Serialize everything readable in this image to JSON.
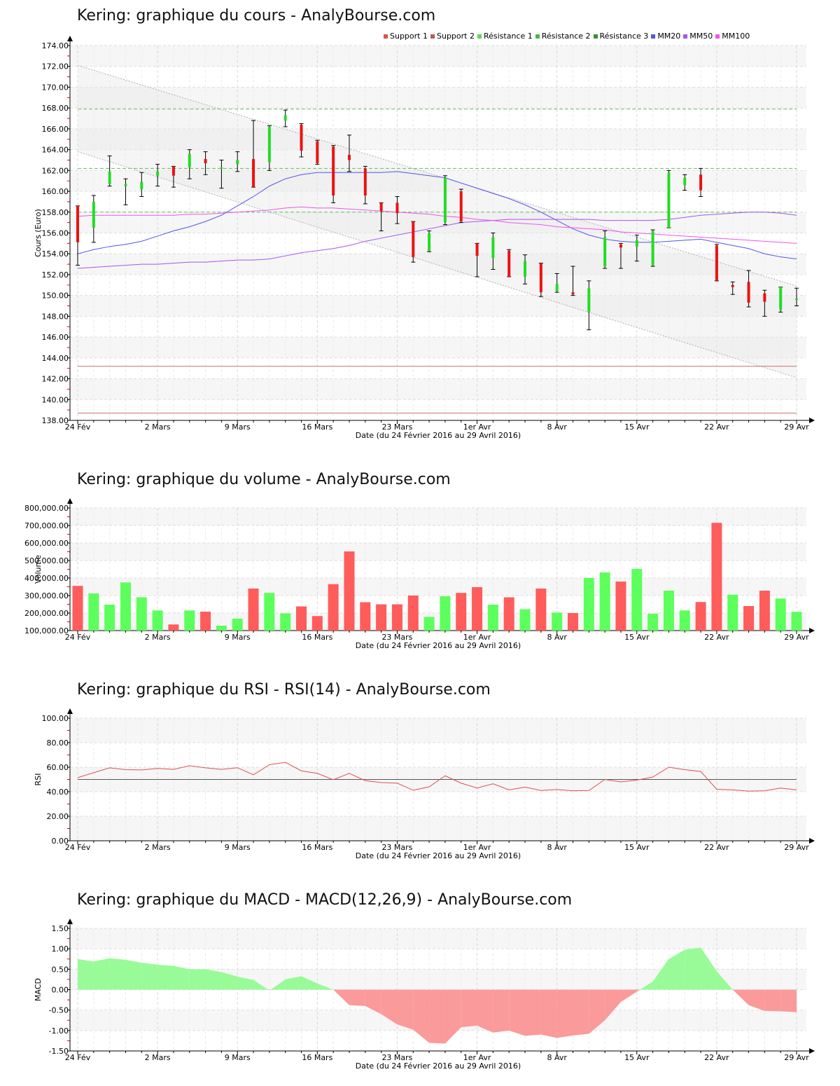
{
  "x_axis": {
    "ticks": [
      "24 Fév",
      "2 Mars",
      "9 Mars",
      "16 Mars",
      "23 Mars",
      "1er Avr",
      "8 Avr",
      "15 Avr",
      "22 Avr",
      "29 Avr"
    ],
    "tick_index": [
      0,
      5,
      10,
      15,
      20,
      25,
      30,
      35,
      40,
      45
    ],
    "label": "Date (du 24 Février 2016 au 29 Avril 2016)"
  },
  "price": {
    "title": "Kering: graphique du cours - AnalyBourse.com",
    "ylabel": "Cours (Euro)",
    "legend": [
      {
        "label": "Support 1",
        "color": "#d9534f"
      },
      {
        "label": "Support 2",
        "color": "#b85c5c"
      },
      {
        "label": "Résistance 1",
        "color": "#5cd65c"
      },
      {
        "label": "Résistance 2",
        "color": "#4cb84c"
      },
      {
        "label": "Résistance 3",
        "color": "#3d8f3d"
      },
      {
        "label": "MM20",
        "color": "#5555ee"
      },
      {
        "label": "MM50",
        "color": "#a855ee"
      },
      {
        "label": "MM100",
        "color": "#ee55ee"
      }
    ]
  },
  "volume": {
    "title": "Kering: graphique du volume - AnalyBourse.com",
    "ylabel": "Volume"
  },
  "rsi": {
    "title": "Kering: graphique du RSI - RSI(14) - AnalyBourse.com",
    "ylabel": "RSI"
  },
  "macd": {
    "title": "Kering: graphique du MACD - MACD(12,26,9) - AnalyBourse.com",
    "ylabel": "MACD"
  },
  "chart_data": [
    {
      "type": "candlestick",
      "title": "Kering: graphique du cours - AnalyBourse.com",
      "xlabel": "Date (du 24 Février 2016 au 29 Avril 2016)",
      "ylabel": "Cours (Euro)",
      "ylim": [
        138,
        174
      ],
      "yticks": [
        138,
        140,
        142,
        144,
        146,
        148,
        150,
        152,
        154,
        156,
        158,
        160,
        162,
        164,
        166,
        168,
        170,
        172,
        174
      ],
      "grid": true,
      "legend_position": "top-right",
      "candles": [
        {
          "o": 158.6,
          "h": 158.6,
          "l": 152.9,
          "c": 155.1
        },
        {
          "o": 156.5,
          "h": 159.6,
          "l": 155.1,
          "c": 159.0
        },
        {
          "o": 160.7,
          "h": 163.4,
          "l": 160.5,
          "c": 161.9
        },
        {
          "o": 160.5,
          "h": 161.2,
          "l": 158.7,
          "c": 160.7
        },
        {
          "o": 160.2,
          "h": 161.8,
          "l": 159.5,
          "c": 160.9
        },
        {
          "o": 161.5,
          "h": 162.6,
          "l": 160.5,
          "c": 161.9
        },
        {
          "o": 162.4,
          "h": 162.4,
          "l": 160.4,
          "c": 161.5
        },
        {
          "o": 162.3,
          "h": 164.0,
          "l": 161.2,
          "c": 163.6
        },
        {
          "o": 163.1,
          "h": 163.8,
          "l": 161.6,
          "c": 162.7
        },
        {
          "o": 162.2,
          "h": 163.0,
          "l": 160.3,
          "c": 162.3
        },
        {
          "o": 162.6,
          "h": 163.8,
          "l": 161.9,
          "c": 163.0
        },
        {
          "o": 163.1,
          "h": 166.8,
          "l": 160.4,
          "c": 160.4
        },
        {
          "o": 162.8,
          "h": 166.3,
          "l": 162.0,
          "c": 166.2
        },
        {
          "o": 166.8,
          "h": 167.8,
          "l": 166.2,
          "c": 167.3
        },
        {
          "o": 166.4,
          "h": 166.5,
          "l": 163.3,
          "c": 163.9
        },
        {
          "o": 164.8,
          "h": 164.9,
          "l": 162.6,
          "c": 162.7
        },
        {
          "o": 164.3,
          "h": 164.4,
          "l": 158.9,
          "c": 159.6
        },
        {
          "o": 163.5,
          "h": 165.4,
          "l": 161.9,
          "c": 163.0
        },
        {
          "o": 162.2,
          "h": 162.4,
          "l": 158.8,
          "c": 159.6
        },
        {
          "o": 158.9,
          "h": 158.9,
          "l": 156.2,
          "c": 158.1
        },
        {
          "o": 158.9,
          "h": 159.5,
          "l": 156.9,
          "c": 157.9
        },
        {
          "o": 157.1,
          "h": 157.1,
          "l": 153.2,
          "c": 153.7
        },
        {
          "o": 154.3,
          "h": 156.2,
          "l": 154.2,
          "c": 156.0
        },
        {
          "o": 157.0,
          "h": 161.5,
          "l": 156.8,
          "c": 161.3
        },
        {
          "o": 160.0,
          "h": 160.2,
          "l": 157.0,
          "c": 157.1
        },
        {
          "o": 155.0,
          "h": 155.0,
          "l": 151.8,
          "c": 153.8
        },
        {
          "o": 153.6,
          "h": 156.0,
          "l": 152.5,
          "c": 155.6
        },
        {
          "o": 154.3,
          "h": 154.4,
          "l": 151.8,
          "c": 151.8
        },
        {
          "o": 151.8,
          "h": 153.9,
          "l": 151.1,
          "c": 153.3
        },
        {
          "o": 153.1,
          "h": 153.1,
          "l": 149.9,
          "c": 150.3
        },
        {
          "o": 150.4,
          "h": 152.1,
          "l": 150.3,
          "c": 151.1
        },
        {
          "o": 150.3,
          "h": 152.8,
          "l": 150.0,
          "c": 150.1
        },
        {
          "o": 148.4,
          "h": 151.4,
          "l": 146.7,
          "c": 150.7
        },
        {
          "o": 152.8,
          "h": 156.2,
          "l": 152.6,
          "c": 155.6
        },
        {
          "o": 154.9,
          "h": 155.0,
          "l": 152.6,
          "c": 154.6
        },
        {
          "o": 154.7,
          "h": 155.8,
          "l": 153.3,
          "c": 155.3
        },
        {
          "o": 152.9,
          "h": 156.3,
          "l": 152.8,
          "c": 156.2
        },
        {
          "o": 156.5,
          "h": 162.0,
          "l": 156.5,
          "c": 161.8
        },
        {
          "o": 160.6,
          "h": 161.6,
          "l": 160.1,
          "c": 161.3
        },
        {
          "o": 161.6,
          "h": 162.2,
          "l": 159.5,
          "c": 160.1
        },
        {
          "o": 154.8,
          "h": 154.9,
          "l": 151.4,
          "c": 151.4
        },
        {
          "o": 151.0,
          "h": 151.3,
          "l": 150.1,
          "c": 150.8
        },
        {
          "o": 151.3,
          "h": 152.4,
          "l": 148.9,
          "c": 149.3
        },
        {
          "o": 150.2,
          "h": 150.5,
          "l": 148.0,
          "c": 149.4
        },
        {
          "o": 148.6,
          "h": 150.8,
          "l": 148.4,
          "c": 150.8
        },
        {
          "o": 149.6,
          "h": 150.7,
          "l": 149.0,
          "c": 149.7
        }
      ],
      "horizontal_lines": [
        {
          "name": "Support 1",
          "value": 143.2,
          "color": "#d9534f"
        },
        {
          "name": "Support 2",
          "value": 138.7,
          "color": "#b85c5c"
        },
        {
          "name": "Résistance 1",
          "value": 158.0,
          "color": "#5cd65c"
        },
        {
          "name": "Résistance 2",
          "value": 162.2,
          "color": "#4cb84c"
        },
        {
          "name": "Résistance 3",
          "value": 167.9,
          "color": "#3d8f3d"
        }
      ],
      "trend_channel": {
        "upper": [
          172.1,
          150.9
        ],
        "lower": [
          163.8,
          142.1
        ]
      },
      "series": [
        {
          "name": "MM20",
          "color": "#5555ee",
          "values": [
            154.0,
            154.4,
            154.7,
            154.9,
            155.2,
            155.7,
            156.2,
            156.6,
            157.1,
            157.7,
            158.6,
            159.5,
            160.5,
            161.2,
            161.6,
            161.8,
            161.8,
            161.8,
            161.8,
            161.8,
            161.9,
            161.7,
            161.5,
            161.3,
            160.8,
            160.3,
            159.8,
            159.3,
            158.7,
            158.0,
            157.2,
            156.4,
            155.8,
            155.4,
            155.2,
            155.1,
            155.1,
            155.2,
            155.3,
            155.4,
            155.1,
            154.8,
            154.5,
            154.0,
            153.7,
            153.5
          ]
        },
        {
          "name": "MM50",
          "color": "#a855ee",
          "values": [
            152.6,
            152.7,
            152.8,
            152.9,
            153.0,
            153.0,
            153.1,
            153.2,
            153.2,
            153.3,
            153.4,
            153.4,
            153.5,
            153.8,
            154.1,
            154.3,
            154.5,
            154.8,
            155.2,
            155.5,
            155.8,
            156.1,
            156.4,
            156.7,
            157.0,
            157.1,
            157.2,
            157.3,
            157.3,
            157.3,
            157.3,
            157.3,
            157.3,
            157.2,
            157.2,
            157.2,
            157.2,
            157.3,
            157.5,
            157.7,
            157.8,
            157.9,
            158.0,
            158.0,
            157.9,
            157.7
          ]
        },
        {
          "name": "MM100",
          "color": "#ee55ee",
          "values": [
            157.6,
            157.7,
            157.7,
            157.7,
            157.7,
            157.7,
            157.7,
            157.8,
            157.8,
            157.9,
            158.0,
            158.1,
            158.2,
            158.4,
            158.5,
            158.4,
            158.4,
            158.3,
            158.2,
            158.1,
            158.0,
            157.9,
            157.8,
            157.6,
            157.5,
            157.3,
            157.2,
            157.0,
            156.9,
            156.8,
            156.6,
            156.5,
            156.4,
            156.3,
            156.1,
            156.0,
            155.9,
            155.8,
            155.7,
            155.6,
            155.5,
            155.4,
            155.3,
            155.2,
            155.1,
            155.0
          ]
        }
      ]
    },
    {
      "type": "bar",
      "title": "Kering: graphique du volume - AnalyBourse.com",
      "xlabel": "Date (du 24 Février 2016 au 29 Avril 2016)",
      "ylabel": "Volume",
      "ylim": [
        100000,
        800000
      ],
      "yticks": [
        100000,
        200000,
        300000,
        400000,
        500000,
        600000,
        700000,
        800000
      ],
      "ytick_labels": [
        "100,000.00",
        "200,000.00",
        "300,000.00",
        "400,000.00",
        "500,000.00",
        "600,000.00",
        "700,000.00",
        "800,000.00"
      ],
      "values": [
        355000,
        312000,
        248000,
        375000,
        290000,
        215000,
        135000,
        215000,
        208000,
        128000,
        168000,
        340000,
        315000,
        198000,
        238000,
        183000,
        365000,
        552000,
        262000,
        250000,
        250000,
        300000,
        178000,
        296000,
        315000,
        348000,
        248000,
        290000,
        222000,
        340000,
        203000,
        200000,
        400000,
        432000,
        380000,
        452000,
        196000,
        328000,
        215000,
        263000,
        715000,
        305000,
        240000,
        328000,
        283000,
        207000
      ],
      "colors": [
        "red",
        "green",
        "green",
        "green",
        "green",
        "green",
        "red",
        "green",
        "red",
        "green",
        "green",
        "red",
        "green",
        "green",
        "red",
        "red",
        "red",
        "red",
        "red",
        "red",
        "red",
        "red",
        "green",
        "green",
        "red",
        "red",
        "green",
        "red",
        "green",
        "red",
        "green",
        "red",
        "green",
        "green",
        "red",
        "green",
        "green",
        "green",
        "green",
        "red",
        "red",
        "green",
        "red",
        "red",
        "green",
        "green"
      ]
    },
    {
      "type": "line",
      "title": "Kering: graphique du RSI - RSI(14) - AnalyBourse.com",
      "xlabel": "Date (du 24 Février 2016 au 29 Avril 2016)",
      "ylabel": "RSI",
      "ylim": [
        0,
        100
      ],
      "yticks": [
        0,
        20,
        40,
        60,
        80,
        100
      ],
      "reference_line": 50,
      "series": [
        {
          "name": "RSI(14)",
          "color": "#e05050",
          "values": [
            51.5,
            55.5,
            59.5,
            58.0,
            57.8,
            59.0,
            58.2,
            61.2,
            59.5,
            58.2,
            59.6,
            53.8,
            62.0,
            64.0,
            57.0,
            55.0,
            49.8,
            55.0,
            49.0,
            47.5,
            47.0,
            41.2,
            44.0,
            53.0,
            47.0,
            43.0,
            46.5,
            41.5,
            43.8,
            41.0,
            41.8,
            40.8,
            41.0,
            50.0,
            48.0,
            49.5,
            52.0,
            60.0,
            58.0,
            56.5,
            42.0,
            41.5,
            40.5,
            40.8,
            43.0,
            41.5
          ]
        }
      ]
    },
    {
      "type": "area",
      "title": "Kering: graphique du MACD - MACD(12,26,9) - AnalyBourse.com",
      "xlabel": "Date (du 24 Février 2016 au 29 Avril 2016)",
      "ylabel": "MACD",
      "ylim": [
        -1.5,
        1.5
      ],
      "yticks": [
        -1.5,
        -1.0,
        -0.5,
        0.0,
        0.5,
        1.0,
        1.5
      ],
      "positive_color": "#98fb98",
      "negative_color": "#fa9a9a",
      "values": [
        0.75,
        0.69,
        0.77,
        0.73,
        0.66,
        0.61,
        0.58,
        0.5,
        0.5,
        0.43,
        0.32,
        0.24,
        -0.02,
        0.25,
        0.33,
        0.15,
        0.0,
        -0.38,
        -0.4,
        -0.6,
        -0.85,
        -0.98,
        -1.3,
        -1.32,
        -0.92,
        -0.88,
        -1.05,
        -1.0,
        -1.13,
        -1.1,
        -1.18,
        -1.12,
        -1.08,
        -0.75,
        -0.3,
        -0.05,
        0.2,
        0.75,
        0.98,
        1.03,
        0.45,
        0.0,
        -0.38,
        -0.52,
        -0.53,
        -0.55
      ]
    }
  ]
}
